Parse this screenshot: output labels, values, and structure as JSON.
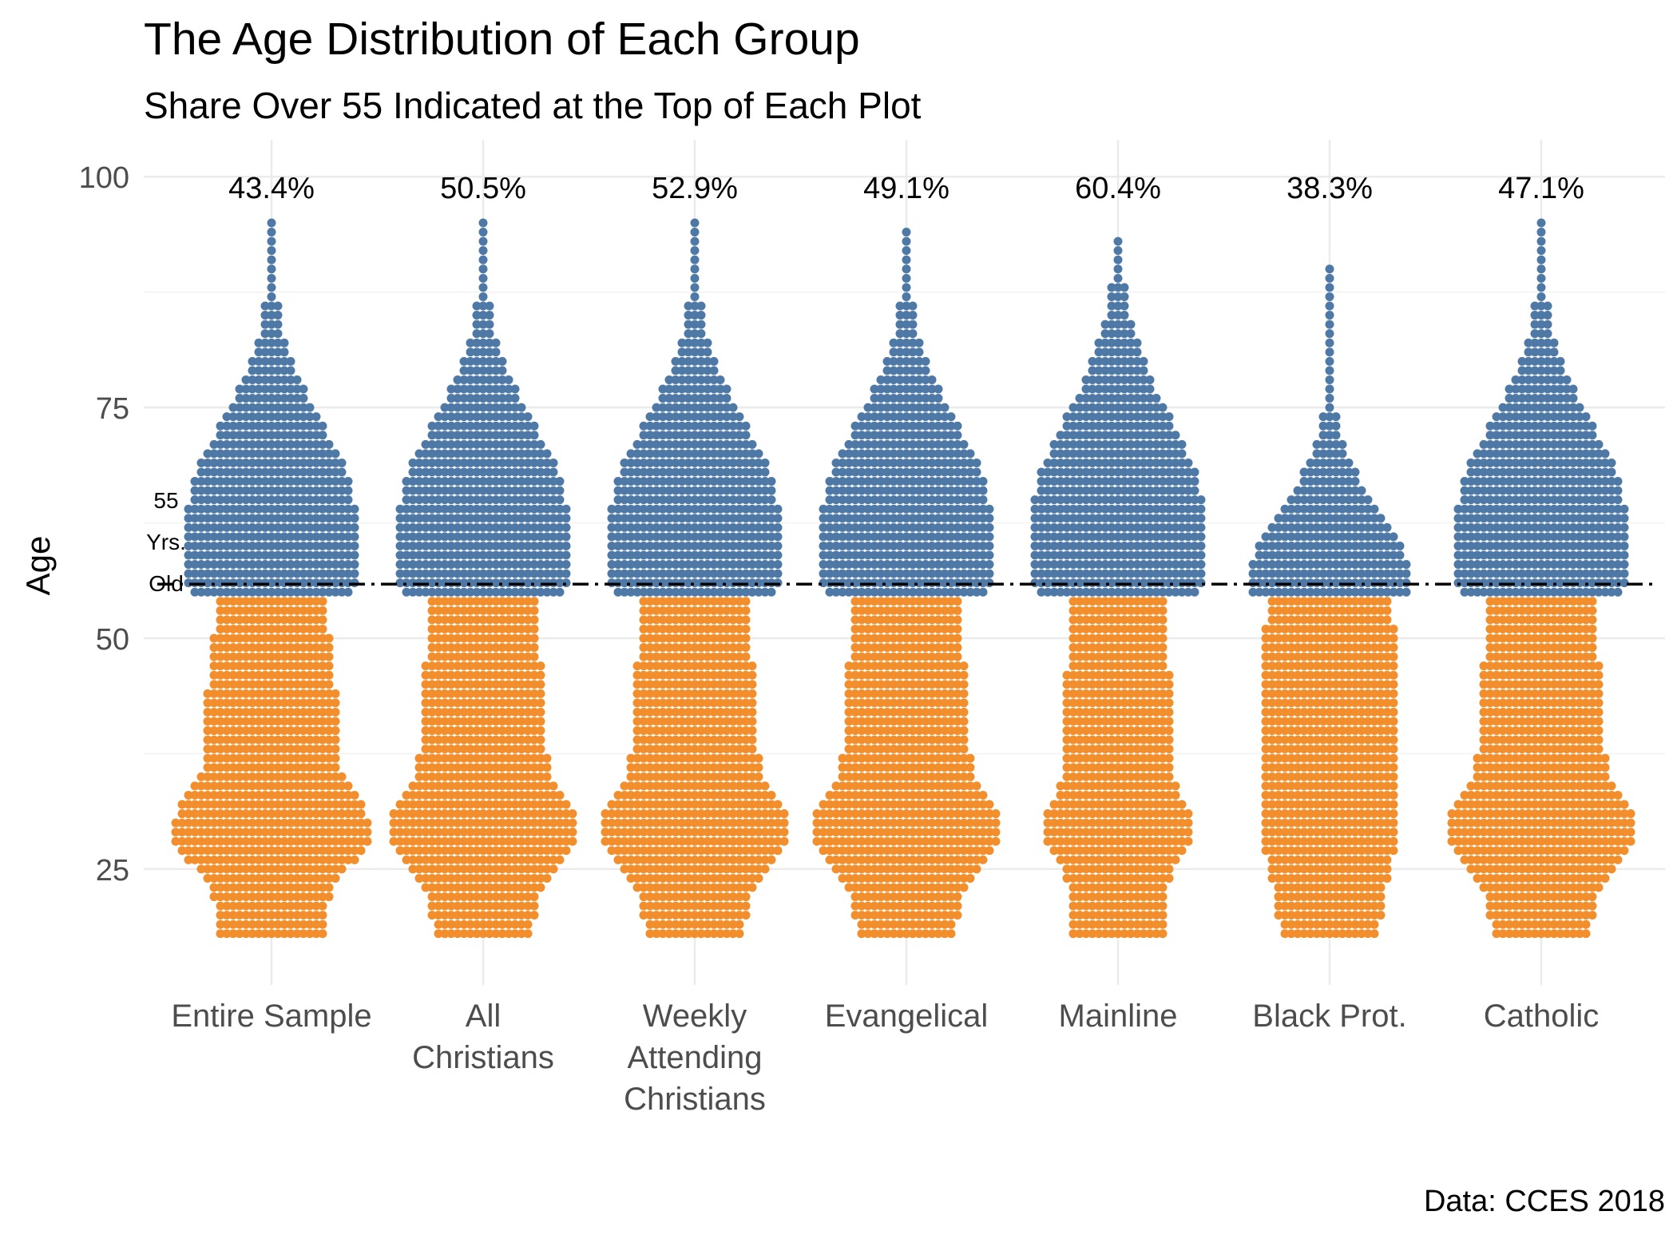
{
  "chart_data": {
    "type": "scatter",
    "title": "The Age Distribution of Each Group",
    "subtitle": "Share Over 55 Indicated at the Top of Each Plot",
    "ylabel": "Age",
    "xlabel": "",
    "caption": "Data: CCES 2018",
    "ylim": [
      14,
      104
    ],
    "y_ticks": [
      25,
      50,
      75,
      100
    ],
    "grid": "on",
    "threshold": {
      "value": 55,
      "label_lines": [
        "55",
        "Yrs.",
        "Old"
      ]
    },
    "colors": {
      "over": "#4e79a7",
      "under": "#f28e2b",
      "grid": "#ebebeb",
      "axis_text": "#4d4d4d"
    },
    "categories": [
      {
        "label_lines": [
          "Entire Sample"
        ],
        "share_label": "43.4%",
        "share_over_55": 43.4,
        "min_age": 18,
        "max_age": 95
      },
      {
        "label_lines": [
          "All",
          "Christians"
        ],
        "share_label": "50.5%",
        "share_over_55": 50.5,
        "min_age": 18,
        "max_age": 95
      },
      {
        "label_lines": [
          "Weekly",
          "Attending",
          "Christians"
        ],
        "share_label": "52.9%",
        "share_over_55": 52.9,
        "min_age": 18,
        "max_age": 95
      },
      {
        "label_lines": [
          "Evangelical"
        ],
        "share_label": "49.1%",
        "share_over_55": 49.1,
        "min_age": 18,
        "max_age": 94
      },
      {
        "label_lines": [
          "Mainline"
        ],
        "share_label": "60.4%",
        "share_over_55": 60.4,
        "min_age": 18,
        "max_age": 93
      },
      {
        "label_lines": [
          "Black Prot."
        ],
        "share_label": "38.3%",
        "share_over_55": 38.3,
        "min_age": 18,
        "max_age": 90
      },
      {
        "label_lines": [
          "Catholic"
        ],
        "share_label": "47.1%",
        "share_over_55": 47.1,
        "min_age": 18,
        "max_age": 95
      }
    ]
  }
}
